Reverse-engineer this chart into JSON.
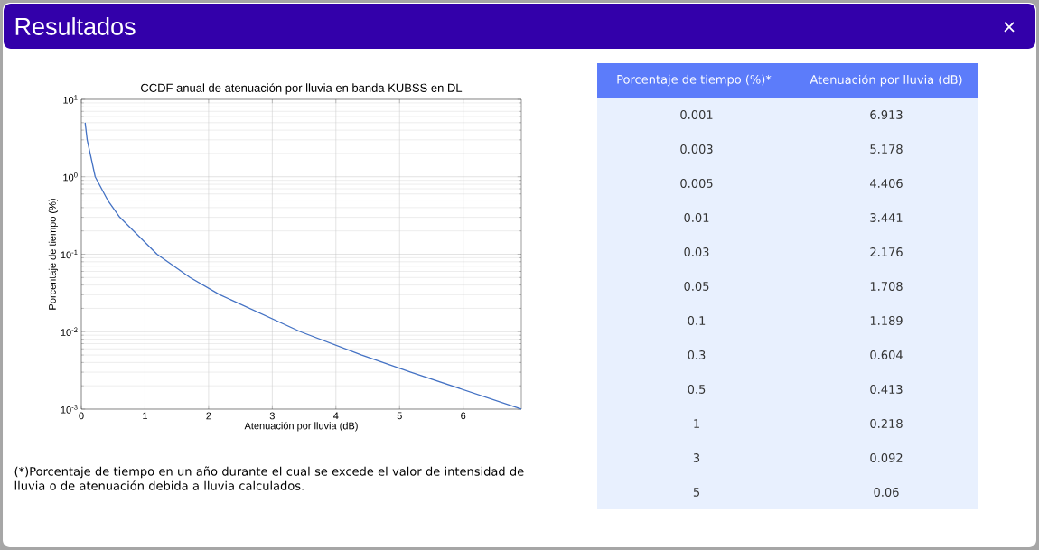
{
  "chart_data": {
    "type": "line",
    "title": "Resultados",
    "subtitle": "CCDF anual de atenuación por lluvia en banda KUBSS en DL",
    "xlabel": "Atenuación por lluvia (dB)",
    "ylabel": "Porcentaje de tiempo (%)",
    "series": [
      {
        "color": "#4472c4",
        "x": [
          6.913,
          5.178,
          4.406,
          3.441,
          2.176,
          1.708,
          1.189,
          0.604,
          0.413,
          0.218,
          0.092,
          0.06
        ],
        "values": [
          0.001,
          0.003,
          0.005,
          0.01,
          0.03,
          0.05,
          0.1,
          0.3,
          0.5,
          1,
          3,
          5
        ]
      }
    ],
    "xlim": [
      0,
      6.913
    ],
    "xticks": [
      0,
      1,
      2,
      3,
      4,
      5,
      6
    ],
    "ylim": [
      0.001,
      10
    ],
    "yticks": [
      {
        "value": 0.001,
        "label": "10$^{-3}$"
      },
      {
        "value": 0.01,
        "label": "10$^{-2}$"
      },
      {
        "value": 0.1,
        "label": "10$^{-1}$"
      },
      {
        "value": 1,
        "label": "10$^{0}$"
      },
      {
        "value": 10,
        "label": "10$^{1}$"
      }
    ],
    "log": "y",
    "grid": true,
    "marker": "none",
    "line_style": "solid",
    "annotations": [
      "Porcentaje de tiempo (%)*",
      "Atenuación por lluvia (dB)",
      "0.001",
      "6.913",
      "0.003",
      "5.178",
      "0.005",
      "4.406",
      "0.01",
      "3.441",
      "0.03",
      "2.176",
      "0.05",
      "1.708",
      "0.1",
      "1.189",
      "0.3",
      "0.604",
      "0.5",
      "0.413",
      "1",
      "0.218",
      "3",
      "0.092",
      "5",
      "0.06",
      "(*)Porcentaje de tiempo en un año durante el cual se excede el valor de intensidad de lluvia o de atenuación debida a lluvia calculados."
    ]
  }
}
